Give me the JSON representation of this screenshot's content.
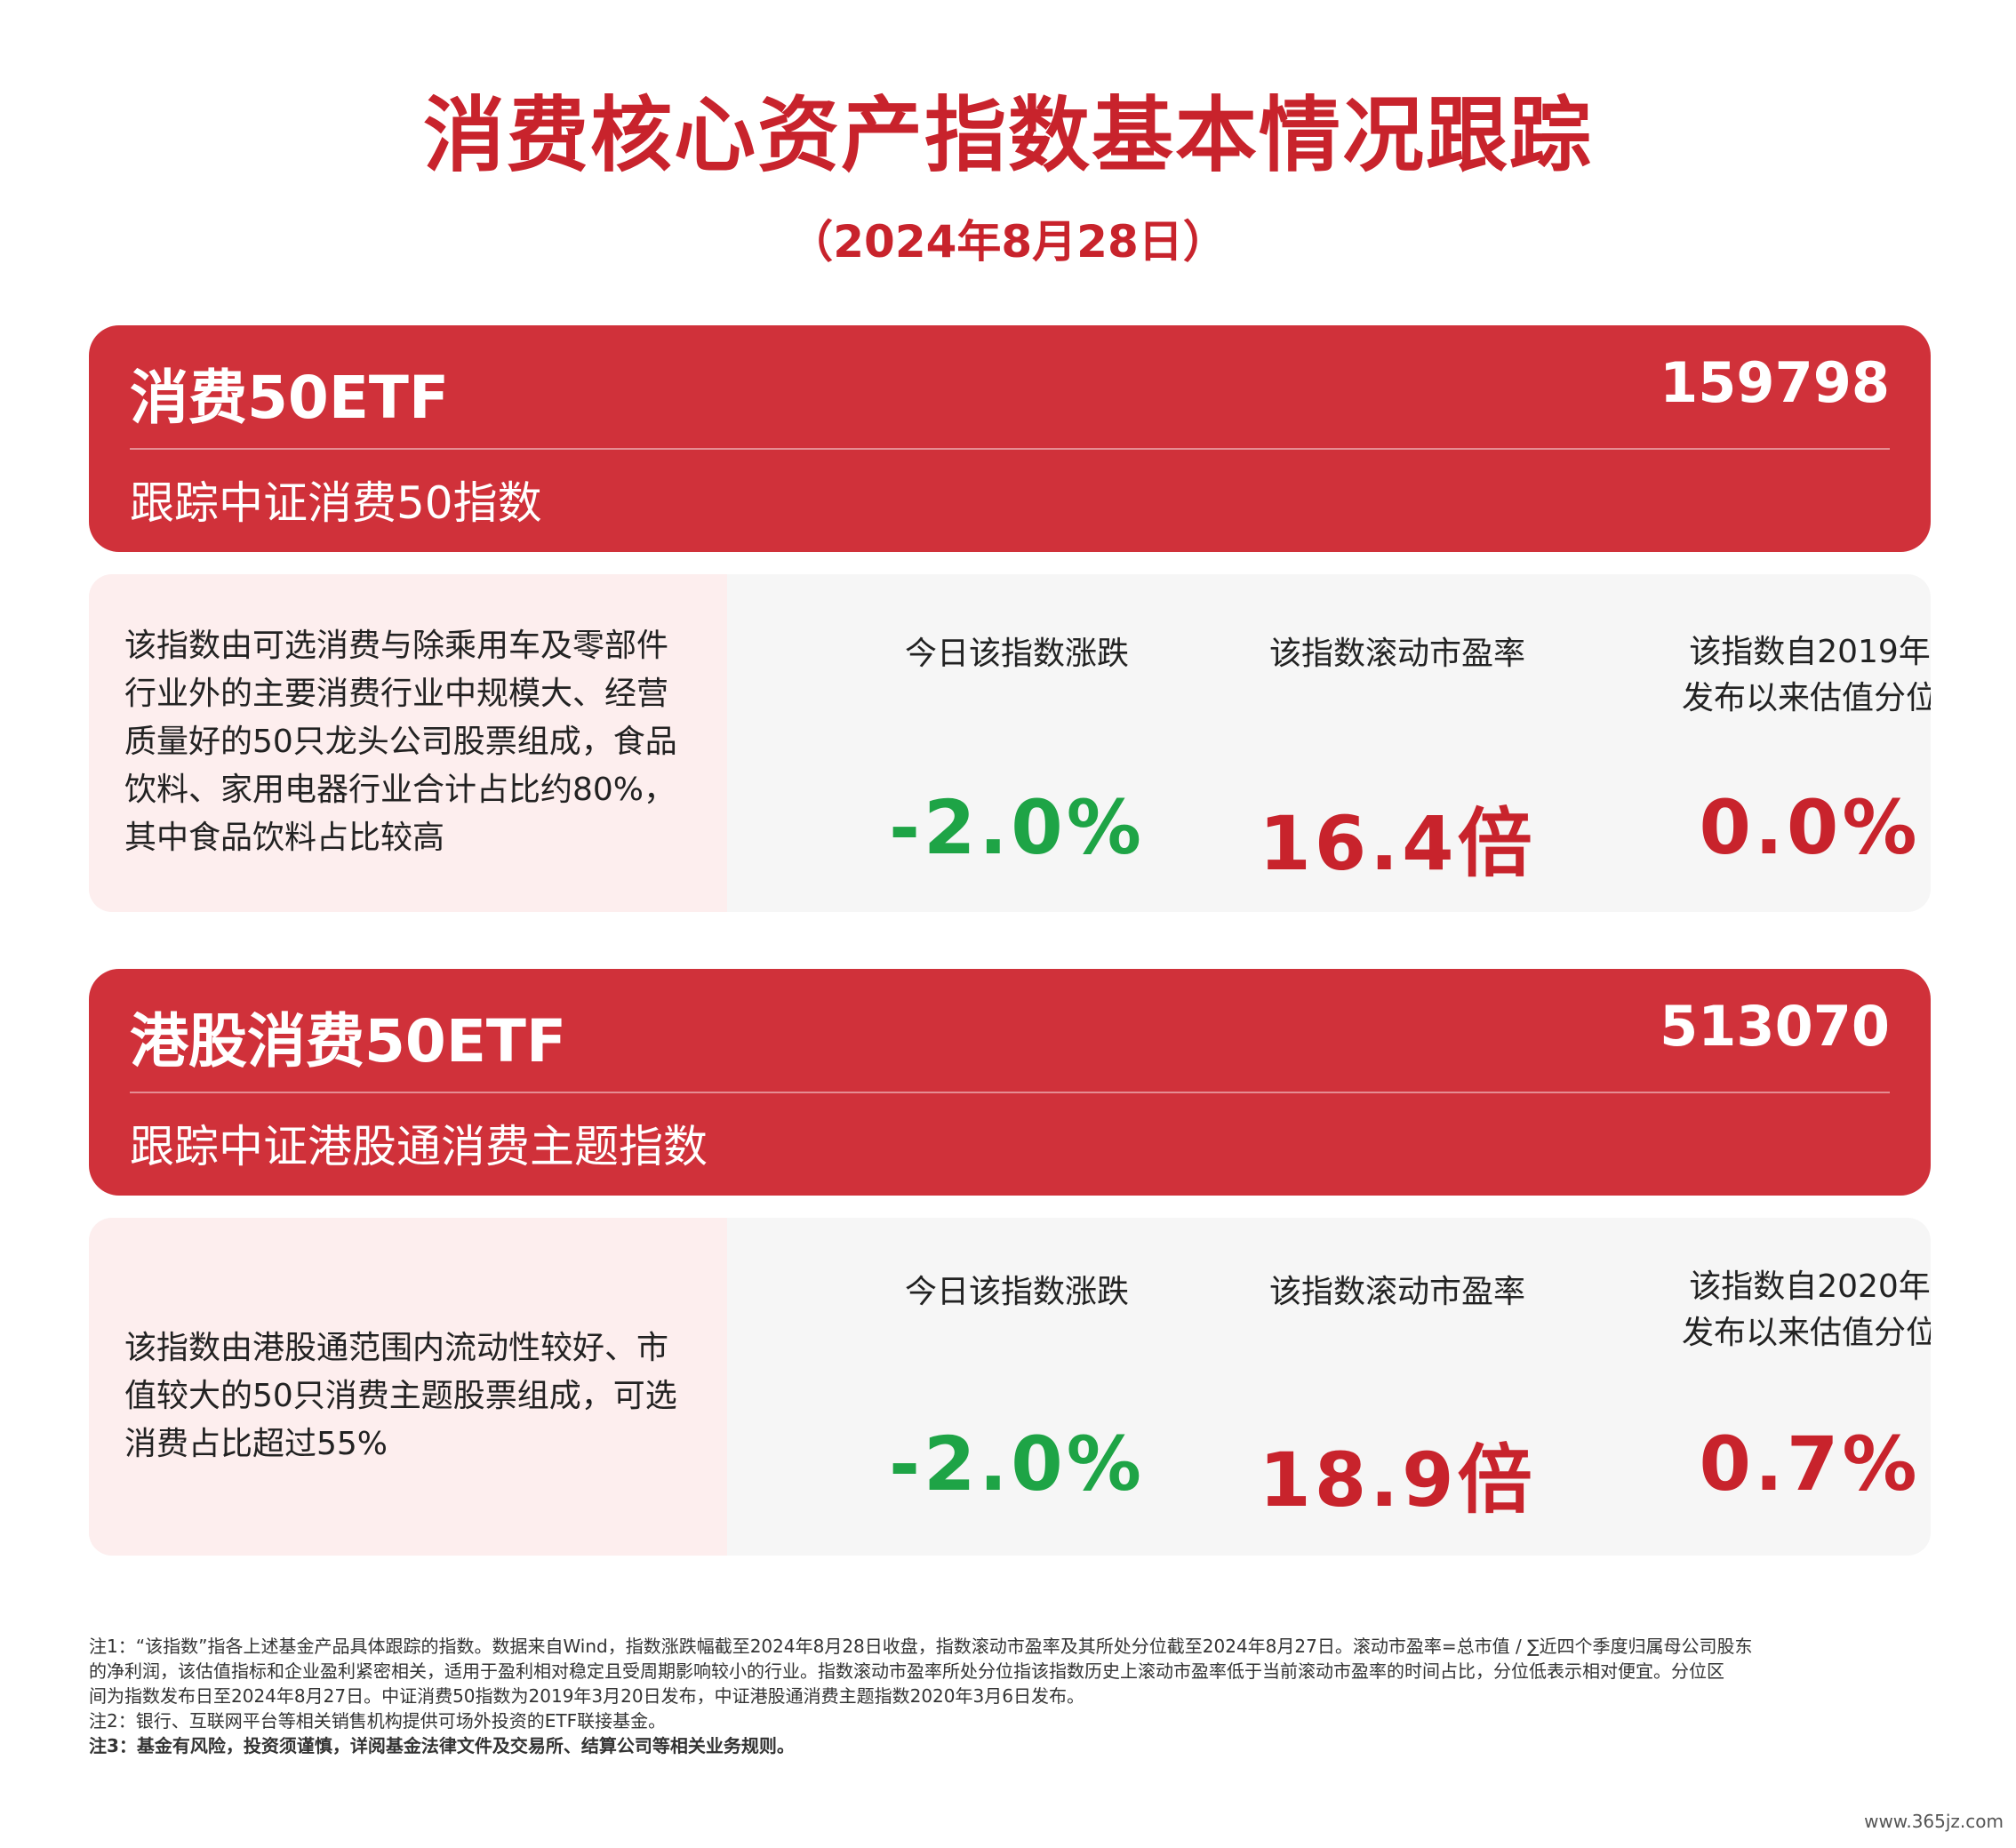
{
  "header": {
    "title": "消费核心资产指数基本情况跟踪",
    "date": "（2024年8月28日）"
  },
  "cards": [
    {
      "name": "消费50ETF",
      "code": "159798",
      "tracking": "跟踪中证消费50指数",
      "description_lines": [
        "该指数由可选消费与除乘用车及零部件",
        "行业外的主要消费行业中规模大、经营",
        "质量好的50只龙头公司股票组成，食品",
        "饮料、家用电器行业合计占比约80%，",
        "其中食品饮料占比较高"
      ],
      "metrics": {
        "change_label": "今日该指数涨跌",
        "change_value": "-2.0%",
        "pe_label": "该指数滚动市盈率",
        "pe_value": "16.4倍",
        "percentile_label_1": "该指数自2019年",
        "percentile_label_2": "发布以来估值分位",
        "percentile_value": "0.0%"
      }
    },
    {
      "name": "港股消费50ETF",
      "code": "513070",
      "tracking": "跟踪中证港股通消费主题指数",
      "description_lines": [
        "该指数由港股通范围内流动性较好、市",
        "值较大的50只消费主题股票组成，可选",
        "消费占比超过55%"
      ],
      "metrics": {
        "change_label": "今日该指数涨跌",
        "change_value": "-2.0%",
        "pe_label": "该指数滚动市盈率",
        "pe_value": "18.9倍",
        "percentile_label_1": "该指数自2020年",
        "percentile_label_2": "发布以来估值分位",
        "percentile_value": "0.7%"
      }
    }
  ],
  "notes": {
    "note1_line1": "注1：“该指数”指各上述基金产品具体跟踪的指数。数据来自Wind，指数涨跌幅截至2024年8月28日收盘，指数滚动市盈率及其所处分位截至2024年8月27日。滚动市盈率=总市值 / ∑近四个季度归属母公司股东",
    "note1_line2": "的净利润，该估值指标和企业盈利紧密相关，适用于盈利相对稳定且受周期影响较小的行业。指数滚动市盈率所处分位指该指数历史上滚动市盈率低于当前滚动市盈率的时间占比，分位低表示相对便宜。分位区",
    "note1_line3": "间为指数发布日至2024年8月27日。中证消费50指数为2019年3月20日发布，中证港股通消费主题指数2020年3月6日发布。",
    "note2": "注2：银行、互联网平台等相关销售机构提供可场外投资的ETF联接基金。",
    "note3": "注3：基金有风险，投资须谨慎，详阅基金法律文件及交易所、结算公司等相关业务规则。"
  },
  "watermark": "www.365jz.com",
  "colors": {
    "brand_red": "#c8232c",
    "card_red": "#d0313a",
    "down_green": "#1ea446"
  }
}
